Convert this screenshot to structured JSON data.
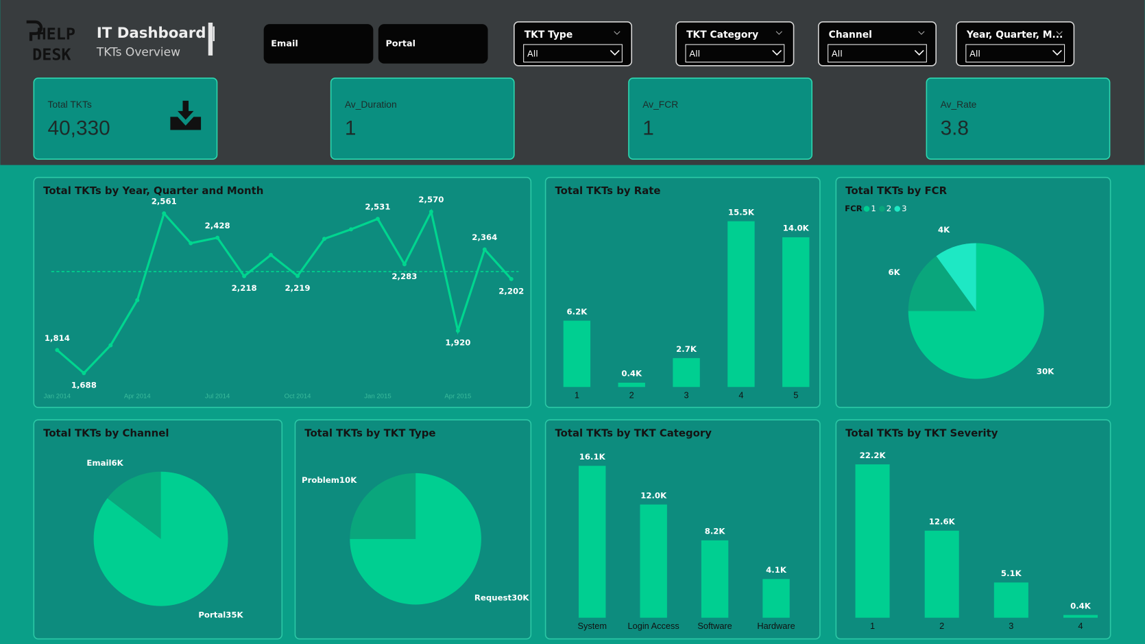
{
  "header": {
    "logo_line1": "HELP",
    "logo_line2": "DESK",
    "title": "IT Dashboard |",
    "subtitle": "TKTs Overview"
  },
  "slicers": {
    "buttons": [
      "Email",
      "Portal"
    ],
    "dropdowns": [
      {
        "label": "TKT Type",
        "value": "All"
      },
      {
        "label": "TKT Category",
        "value": "All"
      },
      {
        "label": "Channel",
        "value": "All"
      },
      {
        "label": "Year, Quarter, M...",
        "value": "All"
      }
    ]
  },
  "kpis": [
    {
      "label": "Total TKTs",
      "value": "40,330"
    },
    {
      "label": "Av_Duration",
      "value": "1"
    },
    {
      "label": "Av_FCR",
      "value": "1"
    },
    {
      "label": "Av_Rate",
      "value": "3.8"
    }
  ],
  "chart_data": [
    {
      "type": "line",
      "title": "Total TKTs by Year, Quarter and Month",
      "categories": [
        "Jan 2014",
        null,
        null,
        "Apr 2014",
        null,
        null,
        "Jul 2014",
        null,
        null,
        "Oct 2014",
        null,
        null,
        "Jan 2015",
        null,
        null,
        "Apr 2015",
        null,
        null
      ],
      "values": [
        1814,
        1688,
        1840,
        2087,
        2561,
        2398,
        2428,
        2218,
        2334,
        2219,
        2422,
        2474,
        2531,
        2283,
        2570,
        1920,
        2364,
        2202
      ],
      "value_labels": [
        "1,814",
        "1,688",
        null,
        null,
        "2,561",
        null,
        "2,428",
        "2,218",
        null,
        "2,219",
        null,
        null,
        "2,531",
        "2,283",
        "2,570",
        "1,920",
        "2,364",
        "2,202"
      ],
      "average_line": 2243,
      "color": "#00d68f"
    },
    {
      "type": "bar",
      "title": "Total TKTs by Rate",
      "categories": [
        "1",
        "2",
        "3",
        "4",
        "5"
      ],
      "values": [
        6200,
        400,
        2700,
        15500,
        14000
      ],
      "value_labels": [
        "6.2K",
        "0.4K",
        "2.7K",
        "15.5K",
        "14.0K"
      ],
      "color": "#00cf91"
    },
    {
      "type": "pie",
      "title": "Total TKTs by FCR",
      "legend": true,
      "legend_title": "FCR",
      "categories": [
        "1",
        "2",
        "3"
      ],
      "values": [
        30000,
        6000,
        4000
      ],
      "value_labels": [
        "30K",
        "6K",
        "4K"
      ],
      "colors": [
        "#00cf91",
        "#0aa67c",
        "#1ee8c4"
      ]
    },
    {
      "type": "pie",
      "title": "Total TKTs by Channel",
      "legend": false,
      "categories": [
        "Portal",
        "Email"
      ],
      "values": [
        35000,
        6000
      ],
      "value_labels": [
        "35K",
        "6K"
      ],
      "colors": [
        "#00cf91",
        "#0aa67c"
      ]
    },
    {
      "type": "pie",
      "title": "Total TKTs by TKT Type",
      "legend": false,
      "categories": [
        "Request",
        "Problem"
      ],
      "values": [
        30000,
        10000
      ],
      "value_labels": [
        "30K",
        "10K"
      ],
      "colors": [
        "#00cf91",
        "#0aa67c"
      ]
    },
    {
      "type": "bar",
      "title": "Total TKTs by TKT Category",
      "categories": [
        "System",
        "Login Access",
        "Software",
        "Hardware"
      ],
      "values": [
        16100,
        12000,
        8200,
        4100
      ],
      "value_labels": [
        "16.1K",
        "12.0K",
        "8.2K",
        "4.1K"
      ],
      "color": "#00cf91"
    },
    {
      "type": "bar",
      "title": "Total TKTs by TKT Severity",
      "categories": [
        "1",
        "2",
        "3",
        "4"
      ],
      "values": [
        22200,
        12600,
        5100,
        400
      ],
      "value_labels": [
        "22.2K",
        "12.6K",
        "5.1K",
        "0.4K"
      ],
      "color": "#00cf91"
    }
  ]
}
